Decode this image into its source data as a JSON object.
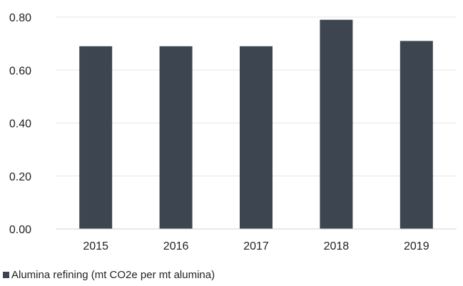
{
  "chart_data": {
    "type": "bar",
    "categories": [
      "2015",
      "2016",
      "2017",
      "2018",
      "2019"
    ],
    "series": [
      {
        "name": "Alumina refining (mt CO2e per mt alumina)",
        "values": [
          0.69,
          0.69,
          0.69,
          0.79,
          0.71
        ],
        "color": "#3d4650"
      }
    ],
    "yticks": [
      "0.00",
      "0.20",
      "0.40",
      "0.60",
      "0.80"
    ],
    "ylim": [
      0,
      0.8
    ],
    "title": "",
    "xlabel": "",
    "ylabel": "",
    "grid": true,
    "legend_position": "bottom-left"
  }
}
